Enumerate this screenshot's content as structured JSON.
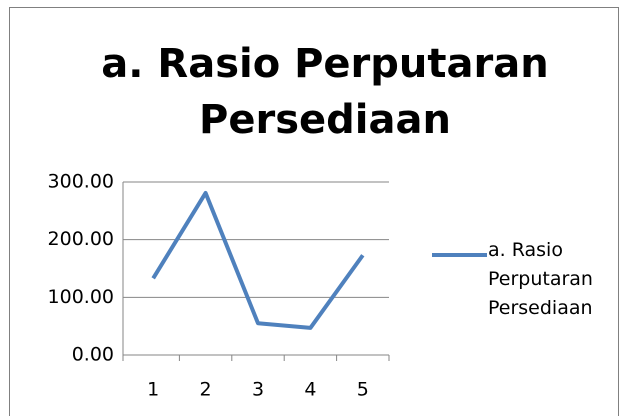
{
  "chart_data": {
    "type": "line",
    "title": "a. Rasio Perputaran Persediaan",
    "categories": [
      "1",
      "2",
      "3",
      "4",
      "5"
    ],
    "series": [
      {
        "name": "a. Rasio Perputaran Persediaan",
        "color": "#4f81bd",
        "values": [
          133,
          281,
          55,
          47,
          173
        ]
      }
    ],
    "ylim": [
      0,
      300
    ],
    "yticks": [
      {
        "value": 0,
        "label": "0.00"
      },
      {
        "value": 100,
        "label": "100.00"
      },
      {
        "value": 200,
        "label": "200.00"
      },
      {
        "value": 300,
        "label": "300.00"
      }
    ],
    "grid": true,
    "legend": "right"
  }
}
